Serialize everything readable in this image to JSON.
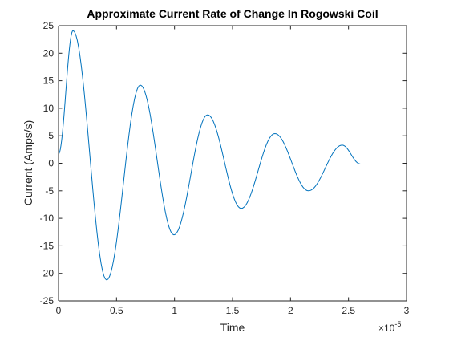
{
  "chart_data": {
    "type": "line",
    "title": "Approximate Current Rate of Change In Rogowski Coil",
    "xlabel": "Time",
    "ylabel": "Current (Amps/s)",
    "x_exponent_label": "×10",
    "x_exponent_power": "-5",
    "x_scale": 1e-05,
    "xlim": [
      0,
      3e-05
    ],
    "ylim": [
      -25,
      25
    ],
    "x_ticks": [
      0,
      5e-06,
      1e-05,
      1.5e-05,
      2e-05,
      2.5e-05,
      3e-05
    ],
    "x_tick_labels": [
      "0",
      "0.5",
      "1",
      "1.5",
      "2",
      "2.5",
      "3"
    ],
    "y_ticks": [
      -25,
      -20,
      -15,
      -10,
      -5,
      0,
      5,
      10,
      15,
      20,
      25
    ],
    "y_tick_labels": [
      "-25",
      "-20",
      "-15",
      "-10",
      "-5",
      "0",
      "5",
      "10",
      "15",
      "20",
      "25"
    ],
    "grid": false,
    "line_color": "#0072BD",
    "series": [
      {
        "x": [
          0,
          1.25e-06,
          4.15e-06,
          7.05e-06,
          9.95e-06,
          1.285e-05,
          1.575e-05,
          1.865e-05,
          2.155e-05,
          2.445e-05,
          2.6e-05
        ],
        "y": [
          1.7,
          24.1,
          -21.2,
          14.2,
          -13.0,
          8.8,
          -8.2,
          5.4,
          -5.0,
          3.3,
          -0.1
        ]
      }
    ]
  }
}
